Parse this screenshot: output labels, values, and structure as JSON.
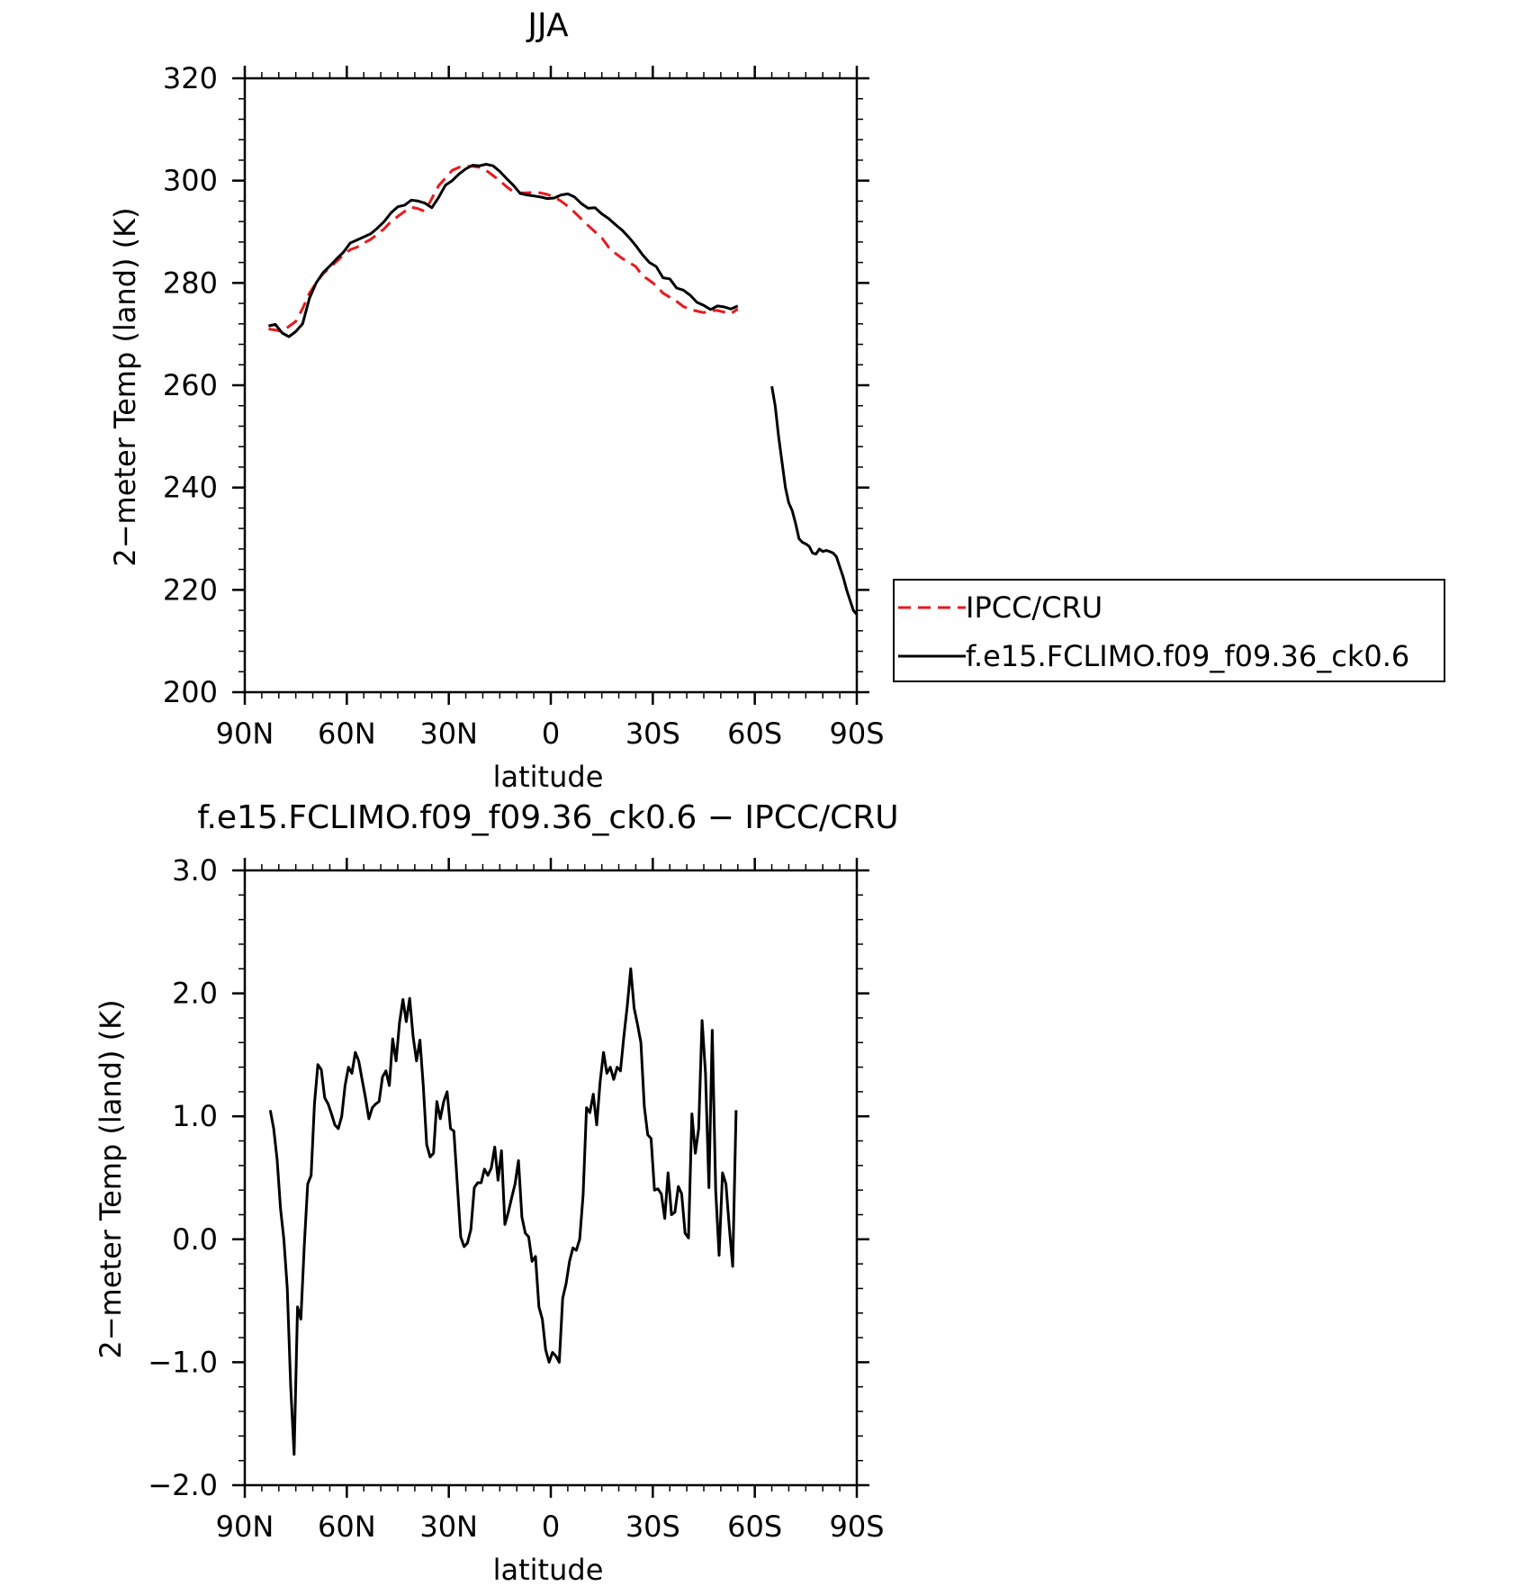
{
  "chart_data": [
    {
      "type": "line",
      "title": "JJA",
      "xlabel": "latitude",
      "ylabel": "2−meter Temp (land) (K)",
      "xlim": [
        90,
        -90
      ],
      "ylim": [
        200,
        320
      ],
      "x_ticks": [
        90,
        60,
        30,
        0,
        -30,
        -60,
        -90
      ],
      "x_tick_labels": [
        "90N",
        "60N",
        "30N",
        "0",
        "30S",
        "60S",
        "90S"
      ],
      "y_ticks": [
        200,
        220,
        240,
        260,
        280,
        300,
        320
      ],
      "y_tick_labels": [
        "200",
        "220",
        "240",
        "260",
        "280",
        "300",
        "320"
      ],
      "legend": {
        "position": "right",
        "entries": [
          "IPCC/CRU",
          "f.e15.FCLIMO.f09_f09.36_ck0.6"
        ]
      },
      "series": [
        {
          "name": "IPCC/CRU",
          "color": "#e8191e",
          "dash": "dashed",
          "x": [
            83,
            81,
            79,
            77,
            75,
            73,
            71,
            69,
            67,
            65,
            63,
            61,
            59,
            57,
            55,
            53,
            51,
            49,
            47,
            45,
            43,
            41,
            39,
            37,
            35,
            33,
            31,
            29,
            27,
            25,
            23,
            21,
            19,
            17,
            15,
            13,
            11,
            9,
            7,
            5,
            3,
            1,
            -1,
            -3,
            -5,
            -7,
            -9,
            -11,
            -13,
            -15,
            -17,
            -19,
            -21,
            -23,
            -25,
            -27,
            -29,
            -31,
            -33,
            -35,
            -37,
            -39,
            -41,
            -43,
            -45,
            -47,
            -49,
            -51,
            -53,
            -55
          ],
          "y": [
            271.0,
            270.8,
            270.5,
            271.5,
            272.5,
            275.0,
            278.0,
            280.0,
            281.8,
            283.0,
            284.2,
            285.5,
            286.5,
            287.0,
            287.8,
            288.5,
            289.5,
            290.6,
            292.0,
            293.0,
            294.0,
            294.8,
            294.5,
            294.0,
            296.5,
            299.0,
            300.5,
            302.0,
            302.6,
            302.8,
            302.8,
            302.6,
            302.0,
            301.0,
            300.0,
            298.8,
            297.8,
            297.6,
            297.6,
            297.7,
            297.6,
            297.3,
            296.8,
            296.0,
            295.0,
            293.8,
            292.5,
            291.2,
            290.0,
            288.8,
            287.0,
            285.8,
            284.8,
            284.0,
            283.2,
            281.4,
            280.5,
            279.5,
            278.0,
            277.2,
            276.4,
            275.4,
            274.8,
            274.5,
            274.2,
            274.6,
            274.6,
            274.3,
            274.0,
            274.9
          ]
        },
        {
          "name": "f.e15.FCLIMO.f09_f09.36_ck0.6",
          "color": "#000000",
          "dash": "solid",
          "x": [
            83,
            81,
            79,
            77,
            75,
            73,
            71,
            69,
            67,
            65,
            63,
            61,
            59,
            57,
            55,
            53,
            51,
            49,
            47,
            45,
            43,
            41,
            39,
            37,
            35,
            33,
            31,
            29,
            27,
            25,
            23,
            21,
            19,
            17,
            15,
            13,
            11,
            9,
            7,
            5,
            3,
            1,
            -1,
            -3,
            -5,
            -7,
            -9,
            -11,
            -13,
            -15,
            -17,
            -19,
            -21,
            -23,
            -25,
            -27,
            -29,
            -31,
            -33,
            -35,
            -37,
            -39,
            -41,
            -43,
            -45,
            -47,
            -49,
            -51,
            -53,
            -55,
            null,
            -65,
            -66,
            -67,
            -68,
            -69,
            -70,
            -71,
            -72,
            -73,
            -74,
            -75,
            -76,
            -77,
            -78,
            -79,
            -80,
            -81,
            -82,
            -83,
            -84,
            -85,
            -86,
            -87,
            -88,
            -89,
            -90
          ],
          "y": [
            271.6,
            271.9,
            270.2,
            269.5,
            270.5,
            272.0,
            277.0,
            280.0,
            282.0,
            283.3,
            284.7,
            286.0,
            287.8,
            288.4,
            289.0,
            289.6,
            290.7,
            292.0,
            293.7,
            294.9,
            295.2,
            296.2,
            296.0,
            295.6,
            294.7,
            296.7,
            299.1,
            300.0,
            301.3,
            302.3,
            303.0,
            302.9,
            303.2,
            302.9,
            301.8,
            300.4,
            299.1,
            297.5,
            297.2,
            297.0,
            296.8,
            296.5,
            296.6,
            297.2,
            297.4,
            296.8,
            295.5,
            294.6,
            294.7,
            293.5,
            292.6,
            291.4,
            290.3,
            288.9,
            287.3,
            285.5,
            284.0,
            283.2,
            281.0,
            280.8,
            279.0,
            278.6,
            277.6,
            276.2,
            275.6,
            274.8,
            275.5,
            275.3,
            274.9,
            275.5,
            null,
            259.8,
            256.0,
            250.0,
            245.0,
            240.0,
            237.0,
            235.5,
            233.0,
            230.0,
            229.3,
            229.0,
            228.5,
            227.2,
            227.0,
            228.0,
            227.5,
            227.7,
            227.5,
            227.2,
            226.5,
            224.5,
            222.5,
            220.0,
            218.0,
            216.0,
            215.2
          ]
        }
      ]
    },
    {
      "type": "line",
      "title": "f.e15.FCLIMO.f09_f09.36_ck0.6 − IPCC/CRU",
      "xlabel": "latitude",
      "ylabel": "2−meter Temp (land) (K)",
      "xlim": [
        90,
        -90
      ],
      "ylim": [
        -2.0,
        3.0
      ],
      "x_ticks": [
        90,
        60,
        30,
        0,
        -30,
        -60,
        -90
      ],
      "x_tick_labels": [
        "90N",
        "60N",
        "30N",
        "0",
        "30S",
        "60S",
        "90S"
      ],
      "y_ticks": [
        -2.0,
        -1.0,
        0.0,
        1.0,
        2.0,
        3.0
      ],
      "y_tick_labels": [
        "−2.0",
        "−1.0",
        "0.0",
        "1.0",
        "2.0",
        "3.0"
      ],
      "series": [
        {
          "color": "#000000",
          "dash": "solid",
          "x": [
            82.5,
            81.5,
            80.5,
            79.5,
            78.5,
            77.5,
            76.5,
            75.5,
            74.5,
            73.5,
            72.5,
            71.5,
            70.5,
            69.5,
            68.5,
            67.5,
            66.5,
            65.5,
            64.5,
            63.5,
            62.5,
            61.5,
            60.5,
            59.5,
            58.5,
            57.5,
            56.5,
            55.5,
            54.5,
            53.5,
            52.5,
            51.5,
            50.5,
            49.5,
            48.5,
            47.5,
            46.5,
            45.5,
            44.5,
            43.5,
            42.5,
            41.5,
            40.5,
            39.5,
            38.5,
            37.5,
            36.5,
            35.5,
            34.5,
            33.5,
            32.5,
            31.5,
            30.5,
            29.5,
            28.5,
            27.5,
            26.5,
            25.5,
            24.5,
            23.5,
            22.5,
            21.5,
            20.5,
            19.5,
            18.5,
            17.5,
            16.5,
            15.5,
            14.5,
            13.5,
            12.5,
            11.5,
            10.5,
            9.5,
            8.5,
            7.5,
            6.5,
            5.5,
            4.5,
            3.5,
            2.5,
            1.5,
            0.5,
            -0.5,
            -1.5,
            -2.5,
            -3.5,
            -4.5,
            -5.5,
            -6.5,
            -7.5,
            -8.5,
            -9.5,
            -10.5,
            -11.5,
            -12.5,
            -13.5,
            -14.5,
            -15.5,
            -16.5,
            -17.5,
            -18.5,
            -19.5,
            -20.5,
            -21.5,
            -22.5,
            -23.5,
            -24.5,
            -25.5,
            -26.5,
            -27.5,
            -28.5,
            -29.5,
            -30.5,
            -31.5,
            -32.5,
            -33.5,
            -34.5,
            -35.5,
            -36.5,
            -37.5,
            -38.5,
            -39.5,
            -40.5,
            -41.5,
            -42.5,
            -43.5,
            -44.5,
            -45.5,
            -46.5,
            -47.5,
            -48.5,
            -49.5,
            -50.5,
            -51.5,
            -52.5,
            -53.5,
            -54.5
          ],
          "y": [
            1.05,
            0.9,
            0.65,
            0.25,
            0.0,
            -0.4,
            -1.2,
            -1.75,
            -0.55,
            -0.65,
            -0.05,
            0.45,
            0.52,
            1.1,
            1.42,
            1.38,
            1.15,
            1.1,
            1.02,
            0.93,
            0.9,
            1.0,
            1.25,
            1.4,
            1.35,
            1.52,
            1.45,
            1.3,
            1.15,
            0.98,
            1.07,
            1.1,
            1.12,
            1.32,
            1.37,
            1.25,
            1.63,
            1.45,
            1.76,
            1.95,
            1.77,
            1.96,
            1.65,
            1.45,
            1.62,
            1.25,
            0.77,
            0.67,
            0.7,
            1.12,
            0.98,
            1.12,
            1.2,
            0.9,
            0.88,
            0.45,
            0.02,
            -0.06,
            -0.03,
            0.08,
            0.42,
            0.46,
            0.46,
            0.57,
            0.52,
            0.58,
            0.75,
            0.48,
            0.72,
            0.12,
            0.22,
            0.34,
            0.45,
            0.64,
            0.18,
            0.05,
            0.02,
            -0.18,
            -0.14,
            -0.55,
            -0.65,
            -0.9,
            -1.0,
            -0.92,
            -0.95,
            -1.0,
            -0.48,
            -0.36,
            -0.18,
            -0.07,
            -0.09,
            0.0,
            0.36,
            1.07,
            1.03,
            1.18,
            0.93,
            1.28,
            1.52,
            1.35,
            1.4,
            1.3,
            1.4,
            1.37,
            1.65,
            1.9,
            2.2,
            1.88,
            1.75,
            1.6,
            1.08,
            0.85,
            0.82,
            0.4,
            0.41,
            0.37,
            0.17,
            0.54,
            0.2,
            0.22,
            0.43,
            0.37,
            0.05,
            0.01,
            1.02,
            0.7,
            0.9,
            1.78,
            1.35,
            0.42,
            1.7,
            0.4,
            -0.13,
            0.54,
            0.45,
            0.1,
            -0.22,
            1.05
          ]
        }
      ]
    }
  ]
}
